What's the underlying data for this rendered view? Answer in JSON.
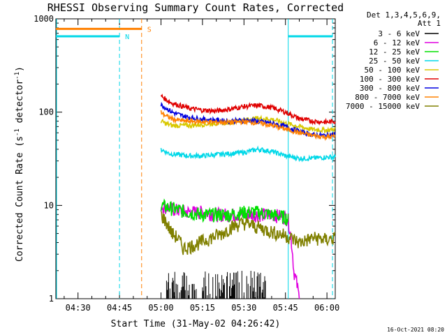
{
  "chart_data": {
    "type": "line",
    "title": "RHESSI Observing Summary Count Rates, Corrected",
    "ylabel_parts": {
      "main": "Corrected Count Rate (s",
      "sup1": "-1",
      "mid": " detector",
      "sup2": "-1",
      "end": ")"
    },
    "xlabel": "Start Time (31-May-02 04:26:42)",
    "footer": "16-Oct-2021 08:20",
    "y_scale": "log",
    "ylim": [
      1,
      1000
    ],
    "y_ticks": [
      {
        "value": 1,
        "label": "1"
      },
      {
        "value": 10,
        "label": "10"
      },
      {
        "value": 100,
        "label": "100"
      },
      {
        "value": 1000,
        "label": "1000"
      }
    ],
    "xlim_minutes": [
      262,
      363
    ],
    "x_ticks": [
      {
        "minutes": 270,
        "label": "04:30"
      },
      {
        "minutes": 285,
        "label": "04:45"
      },
      {
        "minutes": 300,
        "label": "05:00"
      },
      {
        "minutes": 315,
        "label": "05:15"
      },
      {
        "minutes": 330,
        "label": "05:30"
      },
      {
        "minutes": 345,
        "label": "05:45"
      },
      {
        "minutes": 360,
        "label": "06:00"
      }
    ],
    "legend": {
      "placement": "top-right",
      "header": [
        "Det 1,3,4,5,6,9,",
        "Att 1"
      ]
    },
    "series": [
      {
        "name": "3 - 6 keV",
        "color": "#000000",
        "style": "spiky",
        "points": [
          [
            302,
            2
          ],
          [
            306,
            2
          ],
          [
            310,
            2
          ],
          [
            320,
            2
          ],
          [
            330,
            2
          ],
          [
            338,
            2
          ]
        ]
      },
      {
        "name": "6 - 12 keV",
        "color": "#e000e0",
        "points": [
          [
            300,
            10
          ],
          [
            305,
            9
          ],
          [
            310,
            8.5
          ],
          [
            315,
            8.5
          ],
          [
            320,
            8
          ],
          [
            325,
            8
          ],
          [
            330,
            8
          ],
          [
            335,
            8
          ],
          [
            340,
            8
          ],
          [
            345,
            7.5
          ],
          [
            346,
            7
          ],
          [
            348,
            2
          ],
          [
            350,
            1
          ]
        ]
      },
      {
        "name": "12 - 25 keV",
        "color": "#00e000",
        "points": [
          [
            300,
            10
          ],
          [
            303,
            9.5
          ],
          [
            306,
            9
          ],
          [
            310,
            8.5
          ],
          [
            315,
            8
          ],
          [
            320,
            8
          ],
          [
            325,
            8
          ],
          [
            330,
            8.5
          ],
          [
            335,
            8.5
          ],
          [
            340,
            8
          ],
          [
            345,
            7.5
          ],
          [
            346,
            7
          ]
        ]
      },
      {
        "name": "25 - 50 keV",
        "color": "#00d8e8",
        "points": [
          [
            300,
            40
          ],
          [
            303,
            36
          ],
          [
            306,
            35
          ],
          [
            310,
            34
          ],
          [
            315,
            34
          ],
          [
            320,
            35
          ],
          [
            325,
            36
          ],
          [
            330,
            37
          ],
          [
            335,
            40
          ],
          [
            340,
            38
          ],
          [
            345,
            34
          ],
          [
            350,
            32
          ],
          [
            355,
            32
          ],
          [
            360,
            33
          ],
          [
            363,
            33
          ]
        ]
      },
      {
        "name": "50 - 100 keV",
        "color": "#d8c800",
        "points": [
          [
            300,
            80
          ],
          [
            302,
            75
          ],
          [
            304,
            72
          ],
          [
            306,
            72
          ],
          [
            310,
            72
          ],
          [
            315,
            74
          ],
          [
            320,
            76
          ],
          [
            325,
            78
          ],
          [
            330,
            82
          ],
          [
            335,
            86
          ],
          [
            340,
            84
          ],
          [
            345,
            76
          ],
          [
            350,
            70
          ],
          [
            355,
            65
          ],
          [
            360,
            64
          ],
          [
            363,
            66
          ]
        ]
      },
      {
        "name": "100 - 300 keV",
        "color": "#e00000",
        "points": [
          [
            300,
            150
          ],
          [
            302,
            135
          ],
          [
            304,
            125
          ],
          [
            306,
            120
          ],
          [
            310,
            110
          ],
          [
            315,
            105
          ],
          [
            320,
            103
          ],
          [
            325,
            108
          ],
          [
            330,
            115
          ],
          [
            335,
            118
          ],
          [
            340,
            112
          ],
          [
            345,
            100
          ],
          [
            350,
            85
          ],
          [
            355,
            80
          ],
          [
            360,
            78
          ],
          [
            363,
            80
          ]
        ]
      },
      {
        "name": "300 - 800 keV",
        "color": "#0000e0",
        "points": [
          [
            300,
            120
          ],
          [
            302,
            110
          ],
          [
            304,
            100
          ],
          [
            306,
            95
          ],
          [
            310,
            88
          ],
          [
            315,
            84
          ],
          [
            320,
            82
          ],
          [
            325,
            80
          ],
          [
            330,
            82
          ],
          [
            335,
            80
          ],
          [
            340,
            76
          ],
          [
            345,
            70
          ],
          [
            350,
            62
          ],
          [
            355,
            57
          ],
          [
            360,
            56
          ],
          [
            363,
            58
          ]
        ]
      },
      {
        "name": "800 - 7000 keV",
        "color": "#ff8000",
        "points": [
          [
            300,
            100
          ],
          [
            302,
            90
          ],
          [
            304,
            85
          ],
          [
            306,
            82
          ],
          [
            310,
            80
          ],
          [
            315,
            79
          ],
          [
            320,
            78
          ],
          [
            325,
            78
          ],
          [
            330,
            79
          ],
          [
            335,
            77
          ],
          [
            340,
            72
          ],
          [
            345,
            66
          ],
          [
            350,
            60
          ],
          [
            355,
            56
          ],
          [
            360,
            54
          ],
          [
            363,
            55
          ]
        ]
      },
      {
        "name": "7000 - 15000 keV",
        "color": "#808000",
        "points": [
          [
            300,
            8
          ],
          [
            302,
            6.5
          ],
          [
            304,
            5
          ],
          [
            306,
            4.5
          ],
          [
            308,
            3.5
          ],
          [
            310,
            3.6
          ],
          [
            314,
            4
          ],
          [
            318,
            4.5
          ],
          [
            322,
            5
          ],
          [
            326,
            6
          ],
          [
            330,
            6.5
          ],
          [
            334,
            6
          ],
          [
            338,
            5.5
          ],
          [
            342,
            5
          ],
          [
            345,
            4.8
          ],
          [
            350,
            4
          ],
          [
            355,
            4.5
          ],
          [
            360,
            4.3
          ],
          [
            363,
            4.5
          ]
        ]
      }
    ],
    "flags": [
      {
        "label": "N",
        "minutes_from": 262,
        "minutes_to": 285,
        "value": 650,
        "color": "#00d8e8"
      },
      {
        "label": "S",
        "minutes_from": 262,
        "minutes_to": 293,
        "value": 780,
        "color": "#ff8000"
      }
    ],
    "markers": [
      {
        "minutes": 285,
        "color": "#00d8e8",
        "style": "dashed"
      },
      {
        "minutes": 293,
        "color": "#ff8000",
        "style": "dashed"
      },
      {
        "minutes": 346,
        "color": "#00d8e8",
        "style": "solid"
      },
      {
        "minutes": 362,
        "color": "#00d8e8",
        "style": "dashed"
      }
    ],
    "eclipse_bars": [
      {
        "from": 262,
        "to": 285,
        "value": 650,
        "color": "#00d8e8"
      },
      {
        "from": 346,
        "to": 362,
        "value": 650,
        "color": "#00d8e8"
      }
    ]
  }
}
